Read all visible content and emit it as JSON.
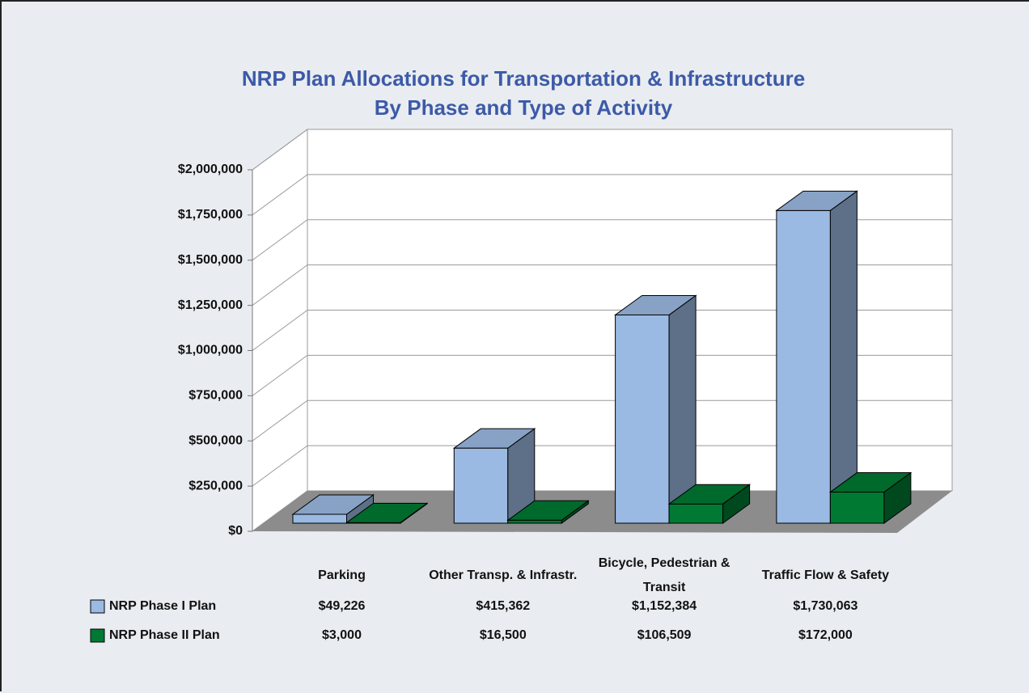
{
  "chart_data": {
    "type": "bar3d",
    "title": "NRP Plan Allocations for Transportation & Infrastructure",
    "subtitle": "By Phase and Type of Activity",
    "categories": [
      "Parking",
      "Other Transp. & Infrastr.",
      "Bicycle, Pedestrian & Transit",
      "Traffic Flow & Safety"
    ],
    "series": [
      {
        "name": "NRP Phase I Plan",
        "color": "#9bbae3",
        "values": [
          49226,
          415362,
          1152384,
          1730063
        ],
        "value_labels": [
          "$49,226",
          "$415,362",
          "$1,152,384",
          "$1,730,063"
        ]
      },
      {
        "name": "NRP Phase II Plan",
        "color": "#007a33",
        "values": [
          3000,
          16500,
          106509,
          172000
        ],
        "value_labels": [
          "$3,000",
          "$16,500",
          "$106,509",
          "$172,000"
        ]
      }
    ],
    "ylim": [
      0,
      2000000
    ],
    "yticks": [
      {
        "value": 0,
        "label": "$0"
      },
      {
        "value": 250000,
        "label": "$250,000"
      },
      {
        "value": 500000,
        "label": "$500,000"
      },
      {
        "value": 750000,
        "label": "$750,000"
      },
      {
        "value": 1000000,
        "label": "$1,000,000"
      },
      {
        "value": 1250000,
        "label": "$1,250,000"
      },
      {
        "value": 1500000,
        "label": "$1,500,000"
      },
      {
        "value": 1750000,
        "label": "$1,750,000"
      },
      {
        "value": 2000000,
        "label": "$2,000,000"
      }
    ],
    "grid": true
  }
}
